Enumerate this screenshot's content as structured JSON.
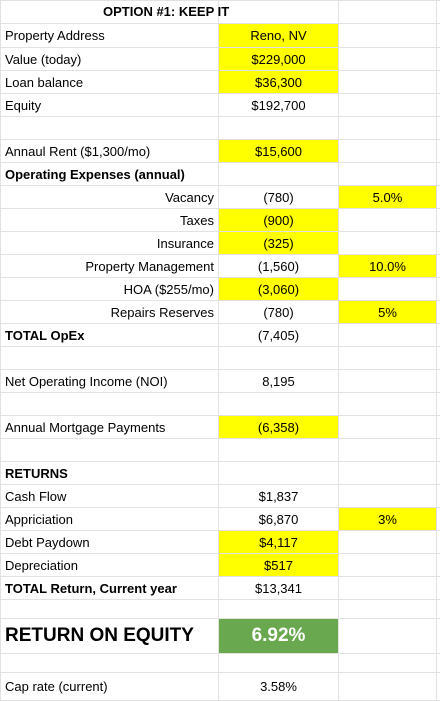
{
  "title": "OPTION #1: KEEP IT",
  "rows": [
    [
      "Property Address",
      "Reno, NV"
    ],
    [
      "Value (today)",
      "$229,000"
    ],
    [
      "Loan balance",
      "$36,300"
    ],
    [
      "Equity",
      "$192,700"
    ],
    [
      "Annaul Rent ($1,300/mo)",
      "$15,600"
    ],
    [
      "Operating Expenses (annual)"
    ],
    [
      "Vacancy",
      "(780)",
      "5.0%"
    ],
    [
      "Taxes",
      "(900)"
    ],
    [
      "Insurance",
      "(325)"
    ],
    [
      "Property Management",
      "(1,560)",
      "10.0%"
    ],
    [
      "HOA ($255/mo)",
      "(3,060)"
    ],
    [
      "Repairs Reserves",
      "(780)",
      "5%"
    ],
    [
      "TOTAL OpEx",
      "(7,405)"
    ],
    [
      "Net Operating Income (NOI)",
      "8,195"
    ],
    [
      "Annual Mortgage Payments",
      "(6,358)"
    ],
    [
      "RETURNS"
    ],
    [
      "Cash Flow",
      "$1,837"
    ],
    [
      "Appriciation",
      "$6,870",
      "3%"
    ],
    [
      "Debt Paydown",
      "$4,117"
    ],
    [
      "Depreciation",
      "$517"
    ],
    [
      "TOTAL Return, Current year",
      "$13,341"
    ],
    [
      "RETURN ON EQUITY",
      "6.92%"
    ],
    [
      "Cap rate (current)",
      "3.58%"
    ]
  ]
}
